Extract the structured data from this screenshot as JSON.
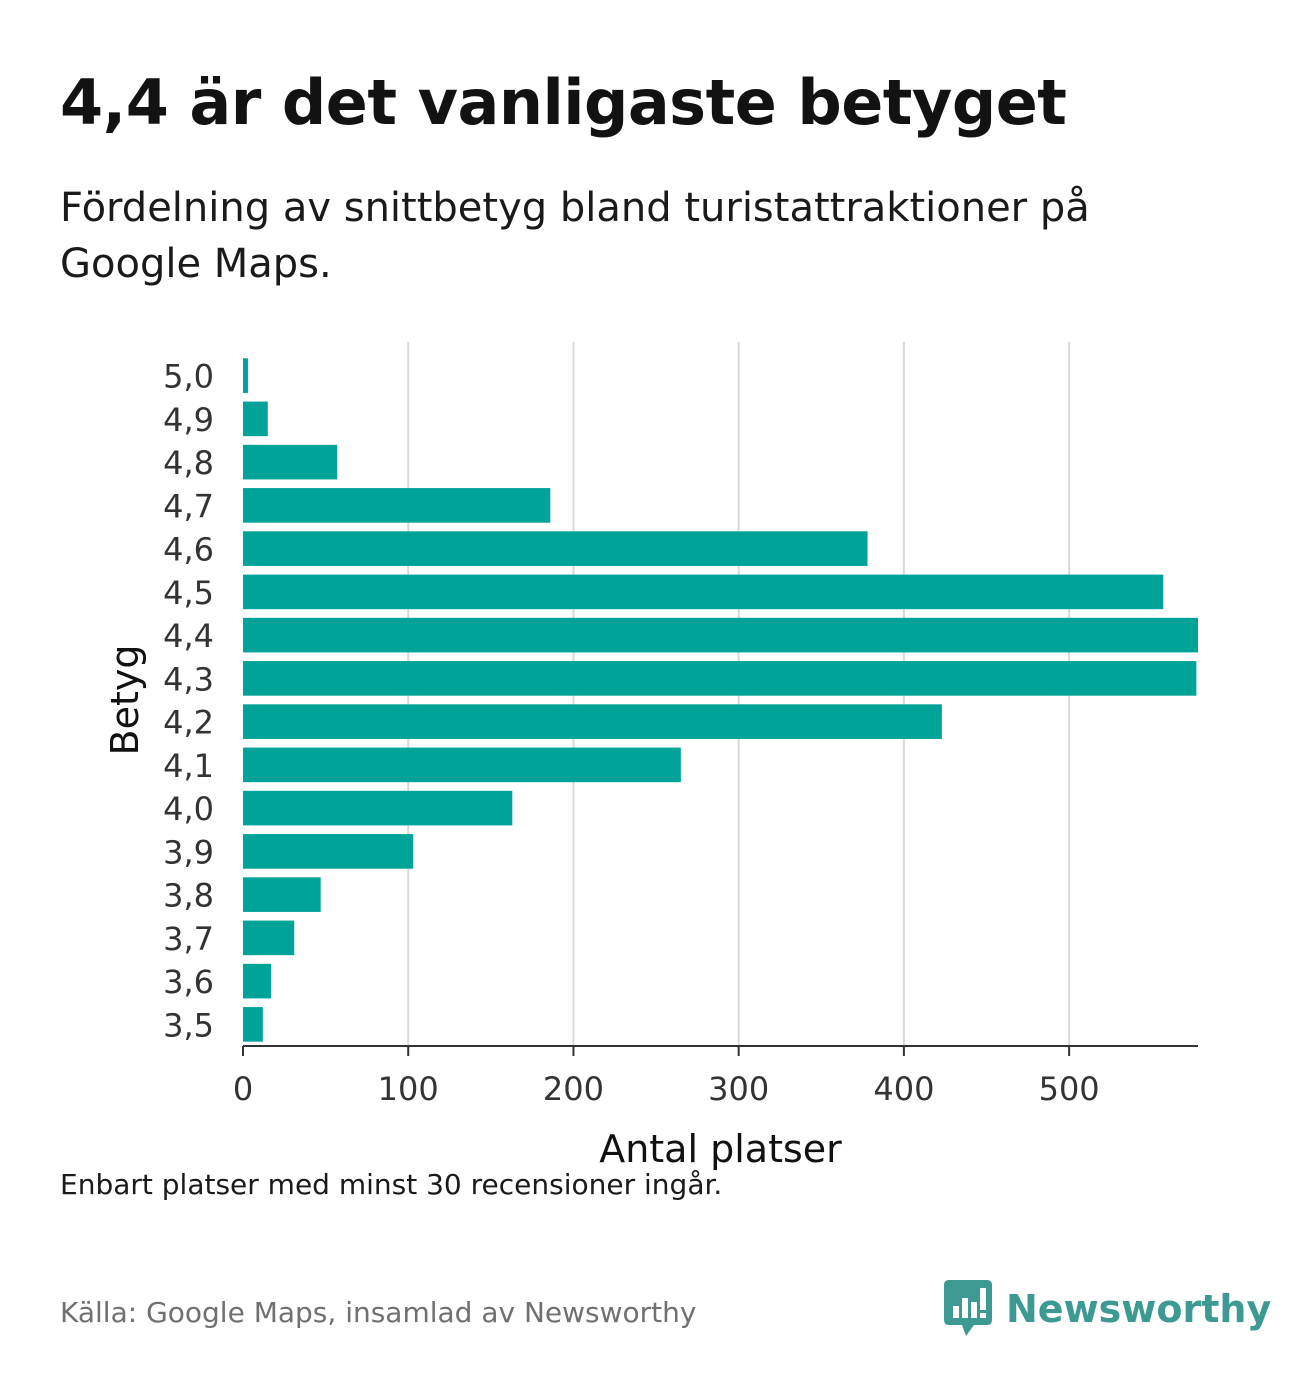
{
  "title": "4,4 är det vanligaste betyget",
  "subtitle": "Fördelning av snittbetyg bland turistattraktioner på Google Maps.",
  "note": "Enbart platser med minst 30 recensioner ingår.",
  "source": "Källa: Google Maps, insamlad av Newsworthy",
  "brand": {
    "name": "Newsworthy",
    "color": "#3d9a93",
    "logo_icon": "bar-chart-speech-bubble-icon"
  },
  "chart_data": {
    "type": "bar",
    "orientation": "horizontal",
    "xlabel": "Antal platser",
    "ylabel": "Betyg",
    "xlim": [
      0,
      578
    ],
    "xticks": [
      0,
      100,
      200,
      300,
      400,
      500
    ],
    "xtick_labels": [
      "0",
      "100",
      "200",
      "300",
      "400",
      "500"
    ],
    "grid": "vertical",
    "bar_color": "#00a398",
    "categories": [
      "5,0",
      "4,9",
      "4,8",
      "4,7",
      "4,6",
      "4,5",
      "4,4",
      "4,3",
      "4,2",
      "4,1",
      "4,0",
      "3,9",
      "3,8",
      "3,7",
      "3,6",
      "3,5"
    ],
    "values": [
      3,
      15,
      57,
      186,
      378,
      557,
      578,
      577,
      423,
      265,
      163,
      103,
      47,
      31,
      17,
      12
    ]
  }
}
